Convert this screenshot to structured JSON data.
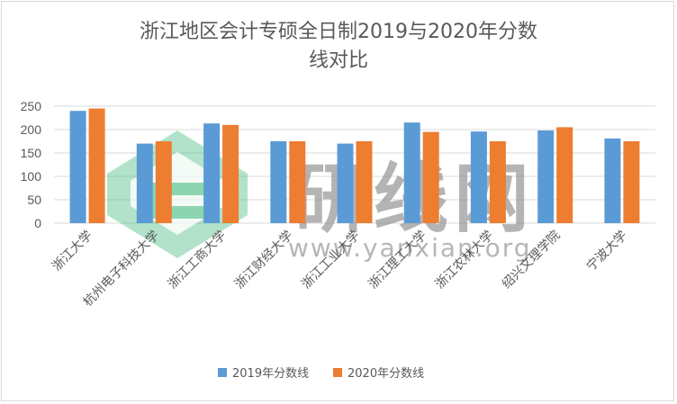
{
  "chart_data": {
    "type": "bar",
    "title_lines": [
      "浙江地区会计专硕全日制2019与2020年分数",
      "线对比"
    ],
    "categories": [
      "浙江大学",
      "杭州电子科技大学",
      "浙江工商大学",
      "浙江财经大学",
      "浙江工业大学",
      "浙江理工大学",
      "浙江农林大学",
      "绍兴文理学院",
      "宁波大学"
    ],
    "series": [
      {
        "name": "2019年分数线",
        "color": "#5b9bd5",
        "values": [
          240,
          170,
          213,
          175,
          170,
          215,
          196,
          198,
          181
        ]
      },
      {
        "name": "2020年分数线",
        "color": "#ed7d31",
        "values": [
          245,
          175,
          210,
          175,
          175,
          195,
          175,
          205,
          175
        ]
      }
    ],
    "ylim": [
      0,
      250
    ],
    "yticks": [
      0,
      50,
      100,
      150,
      200,
      250
    ],
    "grid": true,
    "legend_position": "bottom"
  },
  "watermark": {
    "text": "研线网",
    "url": "www.yanxian.org",
    "color": "#3cb878"
  }
}
